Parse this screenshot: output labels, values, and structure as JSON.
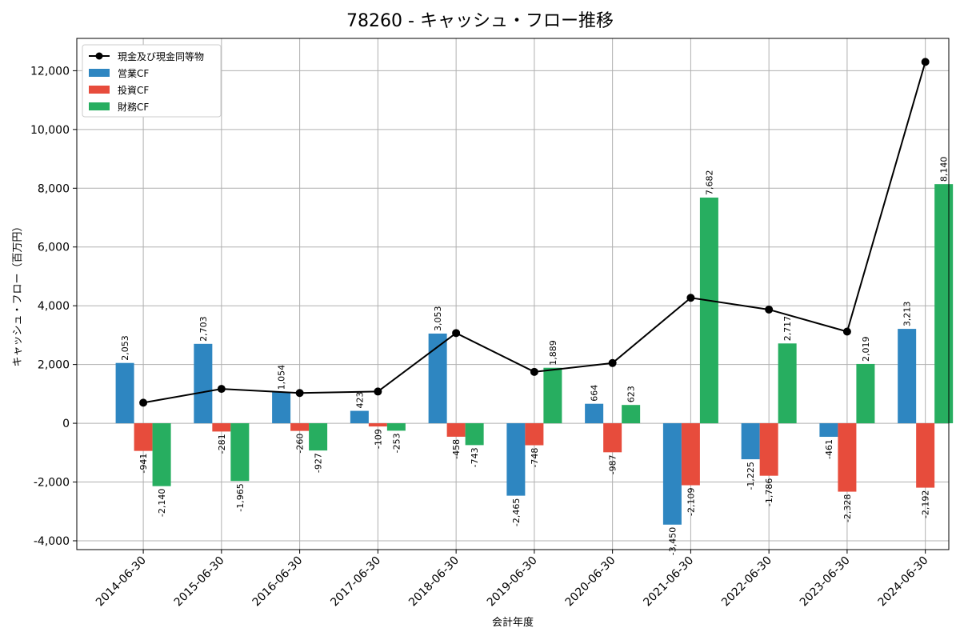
{
  "chart_data": {
    "type": "bar",
    "title": "78260 - キャッシュ・フロー推移",
    "xlabel": "会計年度",
    "ylabel": "キャッシュ・フロー（百万円）",
    "categories": [
      "2014-06-30",
      "2015-06-30",
      "2016-06-30",
      "2017-06-30",
      "2018-06-30",
      "2019-06-30",
      "2020-06-30",
      "2021-06-30",
      "2022-06-30",
      "2023-06-30",
      "2024-06-30"
    ],
    "ylim": [
      -4300,
      13100
    ],
    "yticks": [
      -4000,
      -2000,
      0,
      2000,
      4000,
      6000,
      8000,
      10000,
      12000
    ],
    "ytick_labels": [
      "-4,000",
      "-2,000",
      "0",
      "2,000",
      "4,000",
      "6,000",
      "8,000",
      "10,000",
      "12,000"
    ],
    "grid": true,
    "legend_position": "top-left",
    "series": [
      {
        "name": "営業CF",
        "kind": "bar",
        "color": "#2e86c1",
        "values": [
          2053,
          2703,
          1054,
          423,
          3053,
          -2465,
          664,
          -3450,
          -1225,
          -461,
          3213
        ],
        "labels": [
          "2,053",
          "2,703",
          "1,054",
          "423",
          "3,053",
          "-2,465",
          "664",
          "-3,450",
          "-1,225",
          "-461",
          "3,213"
        ]
      },
      {
        "name": "投資CF",
        "kind": "bar",
        "color": "#e74c3c",
        "values": [
          -941,
          -281,
          -260,
          -109,
          -458,
          -748,
          -987,
          -2109,
          -1786,
          -2328,
          -2192
        ],
        "labels": [
          "-941",
          "-281",
          "-260",
          "-109",
          "-458",
          "-748",
          "-987",
          "-2,109",
          "-1,786",
          "-2,328",
          "-2,192"
        ]
      },
      {
        "name": "財務CF",
        "kind": "bar",
        "color": "#27ae60",
        "values": [
          -2140,
          -1965,
          -927,
          -253,
          -743,
          1889,
          623,
          7682,
          2717,
          2019,
          8140
        ],
        "labels": [
          "-2,140",
          "-1,965",
          "-927",
          "-253",
          "-743",
          "1,889",
          "623",
          "7,682",
          "2,717",
          "2,019",
          "8,140"
        ]
      }
    ],
    "line_series": {
      "name": "現金及び現金同等物",
      "kind": "line",
      "color": "#000000",
      "values": [
        700,
        1170,
        1030,
        1080,
        3070,
        1750,
        2050,
        4270,
        3870,
        3120,
        12300
      ]
    }
  }
}
